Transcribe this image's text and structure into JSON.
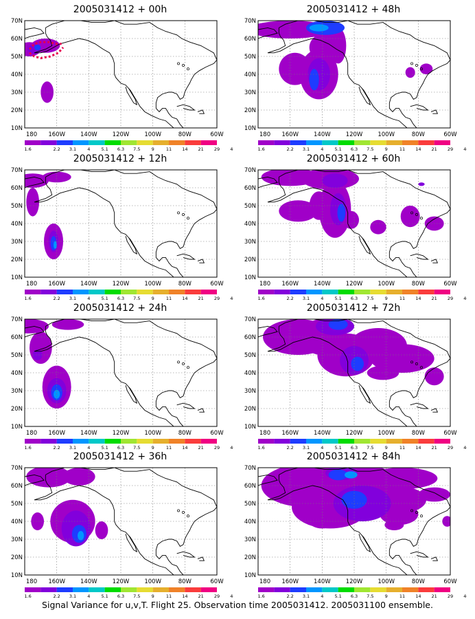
{
  "figure": {
    "caption": "Signal Variance for u,v,T. Flight 25. Observation time 2005031412. 2005031100 ensemble."
  },
  "colorbar": {
    "labels": [
      "1.6",
      "2.2",
      "3.1",
      "4",
      "5.1",
      "6.3",
      "7.5",
      "9",
      "11",
      "14",
      "21",
      "29",
      "40"
    ],
    "colors": [
      "#a000c8",
      "#8200dc",
      "#1e3cff",
      "#0096ff",
      "#00c8c8",
      "#00dc00",
      "#a0e632",
      "#e6dc32",
      "#e6af2d",
      "#f08228",
      "#fa3c3c",
      "#f00082"
    ]
  },
  "axes": {
    "lat_labels": [
      "70N",
      "60N",
      "50N",
      "40N",
      "30N",
      "20N",
      "10N"
    ],
    "lon_labels": [
      "180",
      "160W",
      "140W",
      "120W",
      "100W",
      "80W",
      "60W"
    ]
  },
  "panels": [
    {
      "title": "2005031412 + 00h"
    },
    {
      "title": "2005031412 + 48h"
    },
    {
      "title": "2005031412 + 12h"
    },
    {
      "title": "2005031412 + 60h"
    },
    {
      "title": "2005031412 + 24h"
    },
    {
      "title": "2005031412 + 72h"
    },
    {
      "title": "2005031412 + 36h"
    },
    {
      "title": "2005031412 + 84h"
    }
  ]
}
